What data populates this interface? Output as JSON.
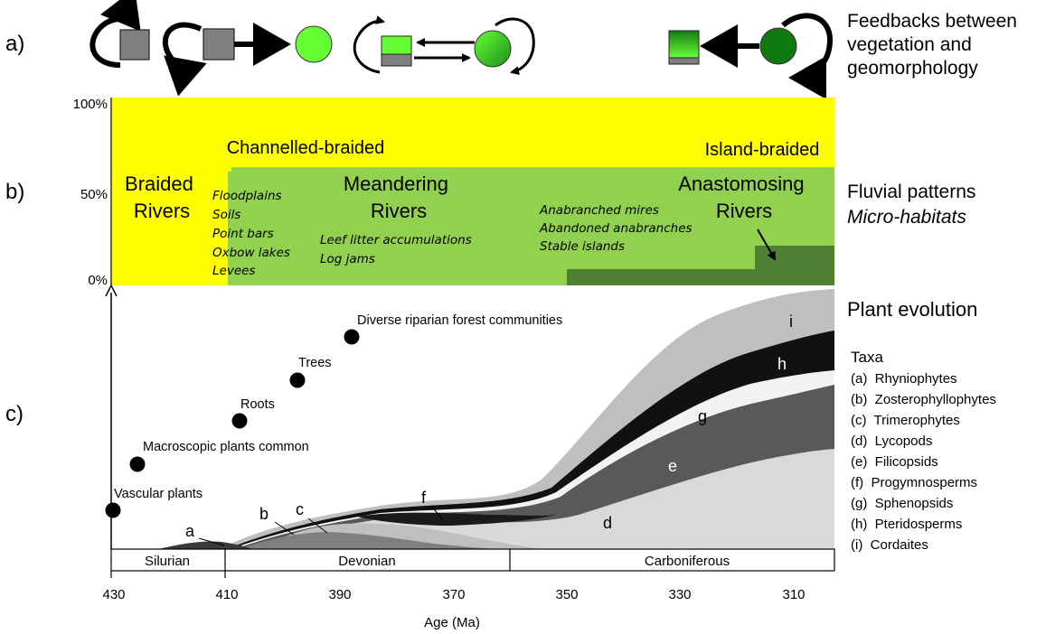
{
  "panel_labels": {
    "a": "a)",
    "b": "b)",
    "c": "c)"
  },
  "panel_a": {
    "title_lines": [
      "Feedbacks between",
      "vegetation and",
      "geomorphology"
    ]
  },
  "panel_b": {
    "y_ticks": [
      "100%",
      "50%",
      "0%"
    ],
    "channelled_braided": "Channelled-braided",
    "island_braided": "Island-braided",
    "braided_rivers": [
      "Braided",
      "Rivers"
    ],
    "meandering_rivers": [
      "Meandering",
      "Rivers"
    ],
    "anastomosing_rivers": [
      "Anastomosing",
      "Rivers"
    ],
    "habitats_left": [
      "Floodplains",
      "Soils",
      "Point bars",
      "Oxbow lakes",
      "Levees"
    ],
    "habitats_mid": [
      "Leef litter accumulations",
      "Log jams"
    ],
    "habitats_right": [
      "Anabranched mires",
      "Abandoned anabranches",
      "Stable islands"
    ],
    "right_title": "Fluvial patterns",
    "right_subtitle": "Micro-habitats",
    "colors": {
      "yellow": "#ffff00",
      "light_green": "#92d050",
      "dark_green": "#4f7f32"
    }
  },
  "panel_c": {
    "title": "Plant evolution",
    "taxa_header": "Taxa",
    "taxa": [
      "(a)  Rhyniophytes",
      "(b)  Zosterophyllophytes",
      "(c)  Trimerophytes",
      "(d)  Lycopods",
      "(e)  Filicopsids",
      "(f)  Progymnosperms",
      "(g)  Sphenopsids",
      "(h)  Pteridosperms",
      "(i)  Cordaites"
    ],
    "events": [
      {
        "label": "Vascular plants",
        "age": 430
      },
      {
        "label": "Macroscopic plants common",
        "age": 426
      },
      {
        "label": "Roots",
        "age": 408
      },
      {
        "label": "Trees",
        "age": 398
      },
      {
        "label": "Diverse riparian forest communities",
        "age": 388
      }
    ],
    "curve_labels": [
      "a",
      "b",
      "c",
      "d",
      "e",
      "f",
      "g",
      "h",
      "i"
    ],
    "periods": [
      "Silurian",
      "Devonian",
      "Carboniferous"
    ],
    "x_ticks": [
      "430",
      "410",
      "390",
      "370",
      "350",
      "330",
      "310"
    ],
    "xlabel": "Age  (Ma)"
  }
}
